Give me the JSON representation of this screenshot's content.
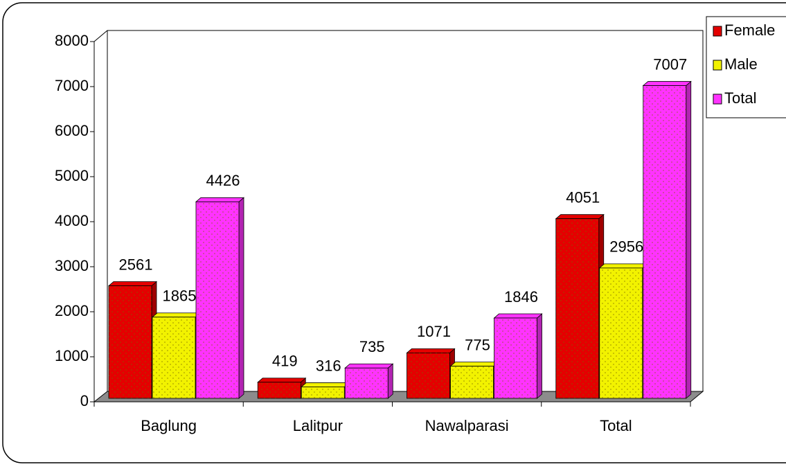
{
  "chart_data": {
    "type": "bar3d",
    "categories": [
      "Baglung",
      "Lalitpur",
      "Nawalparasi",
      "Total"
    ],
    "series": [
      {
        "name": "Female",
        "color": "#e40000",
        "values": [
          2561,
          419,
          1071,
          4051
        ]
      },
      {
        "name": "Male",
        "color": "#f2f200",
        "values": [
          1865,
          316,
          775,
          2956
        ]
      },
      {
        "name": "Total",
        "color": "#ff33ff",
        "values": [
          4426,
          735,
          1846,
          7007
        ]
      }
    ],
    "ylim": [
      0,
      8000
    ],
    "yticks": [
      0,
      1000,
      2000,
      3000,
      4000,
      5000,
      6000,
      7000,
      8000
    ],
    "legend": "right"
  }
}
